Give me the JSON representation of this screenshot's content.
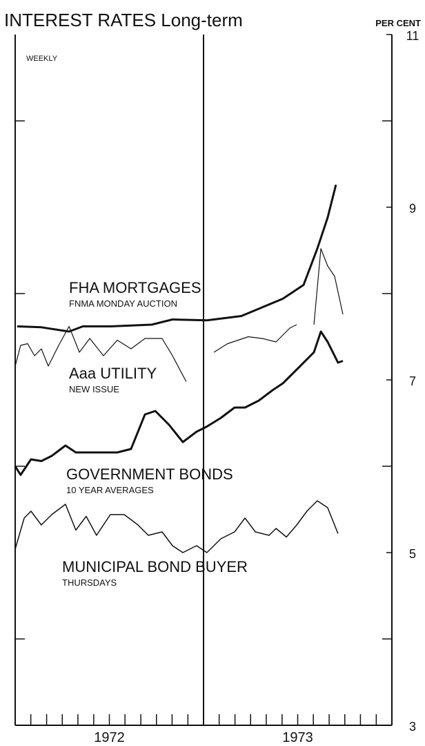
{
  "chart_data": {
    "type": "line",
    "title": "INTEREST RATES Long-term",
    "y_label": "PER CENT",
    "subtitle": "WEEKLY",
    "xlim": [
      1972,
      1974
    ],
    "ylim": [
      3,
      11
    ],
    "yticks": [
      3,
      5,
      7,
      9,
      11
    ],
    "yminorticks": [
      4,
      6,
      8,
      10
    ],
    "xticks": [
      1972,
      1972.083,
      1972.167,
      1972.25,
      1972.333,
      1972.417,
      1972.5,
      1972.583,
      1972.667,
      1972.75,
      1972.833,
      1972.917,
      1973,
      1973.083,
      1973.167,
      1973.25,
      1973.333,
      1973.417,
      1973.5,
      1973.583,
      1973.667,
      1973.75,
      1973.833,
      1973.917,
      1974
    ],
    "year_labels": [
      {
        "value": 1972.5,
        "label": "1972"
      },
      {
        "value": 1973.5,
        "label": "1973"
      }
    ],
    "vline": 1973,
    "series": [
      {
        "name": "FHA MORTGAGES",
        "note": "FNMA MONDAY AUCTION",
        "color": "#111111",
        "line_width": 3,
        "x": [
          1972.011,
          1972.139,
          1972.286,
          1972.359,
          1972.505,
          1972.725,
          1972.835,
          1973.018,
          1973.201,
          1973.311,
          1973.421,
          1973.531,
          1973.604,
          1973.659,
          1973.703
        ],
        "values": [
          7.62,
          7.61,
          7.56,
          7.62,
          7.62,
          7.64,
          7.7,
          7.69,
          7.74,
          7.84,
          7.94,
          8.1,
          8.52,
          8.88,
          9.26
        ]
      },
      {
        "name": "Aaa UTILITY",
        "note": "NEW ISSUE",
        "color": "#111111",
        "line_width": 1.2,
        "x": [
          1972.0,
          1972.029,
          1972.066,
          1972.103,
          1972.139,
          1972.176,
          1972.231,
          1972.286,
          1972.341,
          1972.396,
          1972.469,
          1972.542,
          1972.615,
          1972.689,
          1972.78,
          1972.835,
          1972.908,
          1972.999,
          1973.055,
          1973.128,
          1973.238,
          1973.311,
          1973.385,
          1973.458,
          1973.495,
          1973.531,
          1973.586,
          1973.623,
          1973.659,
          1973.696,
          1973.74
        ],
        "values": [
          7.16,
          7.4,
          7.42,
          7.28,
          7.36,
          7.16,
          7.4,
          7.62,
          7.32,
          7.48,
          7.28,
          7.46,
          7.36,
          7.48,
          7.48,
          7.28,
          6.98,
          null,
          7.32,
          7.42,
          7.5,
          7.48,
          7.44,
          7.6,
          7.64,
          null,
          7.64,
          8.52,
          8.32,
          8.2,
          7.76
        ]
      },
      {
        "name": "GOVERNMENT BONDS",
        "note": "10 YEAR AVERAGES",
        "color": "#111111",
        "line_width": 3,
        "x": [
          1972.0,
          1972.029,
          1972.084,
          1972.139,
          1972.194,
          1972.267,
          1972.322,
          1972.396,
          1972.469,
          1972.542,
          1972.615,
          1972.689,
          1972.744,
          1972.817,
          1972.89,
          1972.963,
          1973.018,
          1973.092,
          1973.165,
          1973.22,
          1973.293,
          1973.366,
          1973.421,
          1973.495,
          1973.586,
          1973.623,
          1973.659,
          1973.714,
          1973.74
        ],
        "values": [
          6.0,
          5.9,
          6.08,
          6.06,
          6.12,
          6.24,
          6.16,
          6.16,
          6.16,
          6.16,
          6.2,
          6.6,
          6.64,
          6.48,
          6.28,
          6.4,
          6.46,
          6.56,
          6.68,
          6.68,
          6.76,
          6.88,
          6.96,
          7.12,
          7.32,
          7.56,
          7.44,
          7.2,
          7.22
        ]
      },
      {
        "name": "MUNICIPAL BOND BUYER",
        "note": "THURSDAYS",
        "color": "#111111",
        "line_width": 1.5,
        "x": [
          1972.0,
          1972.048,
          1972.084,
          1972.139,
          1972.194,
          1972.267,
          1972.322,
          1972.377,
          1972.432,
          1972.505,
          1972.579,
          1972.652,
          1972.707,
          1972.78,
          1972.835,
          1972.89,
          1972.963,
          1973.018,
          1973.092,
          1973.165,
          1973.22,
          1973.275,
          1973.348,
          1973.385,
          1973.44,
          1973.495,
          1973.549,
          1973.604,
          1973.659,
          1973.714
        ],
        "values": [
          5.04,
          5.4,
          5.48,
          5.32,
          5.44,
          5.56,
          5.26,
          5.42,
          5.2,
          5.44,
          5.44,
          5.32,
          5.2,
          5.24,
          5.08,
          5.0,
          5.08,
          5.0,
          5.16,
          5.24,
          5.4,
          5.24,
          5.2,
          5.28,
          5.18,
          5.32,
          5.48,
          5.6,
          5.52,
          5.22
        ]
      }
    ]
  }
}
